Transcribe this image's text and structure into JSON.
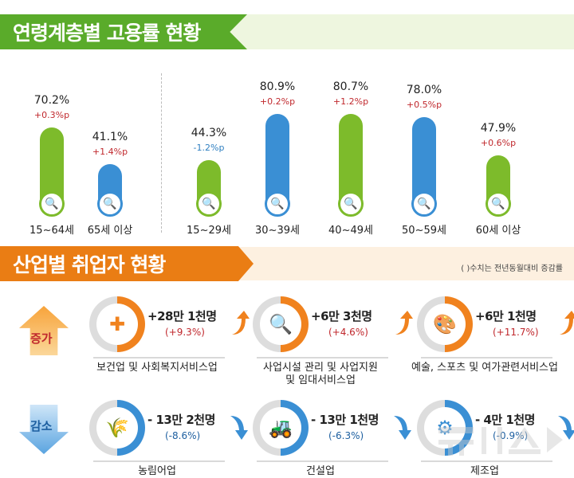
{
  "section1": {
    "title": "연령계층별 고용률 현황",
    "colors": {
      "green": "#7dbb2b",
      "blue": "#3a8fd4",
      "up": "#c0282d",
      "down": "#2e7fc1"
    },
    "bars": [
      {
        "label": "15~64세",
        "value": "70.2%",
        "change": "+0.3%p",
        "v": 70.2,
        "color": "green",
        "dir": "up"
      },
      {
        "label": "65세 이상",
        "value": "41.1%",
        "change": "+1.4%p",
        "v": 41.1,
        "color": "blue",
        "dir": "up"
      },
      {
        "label": "15~29세",
        "value": "44.3%",
        "change": "-1.2%p",
        "v": 44.3,
        "color": "green",
        "dir": "down"
      },
      {
        "label": "30~39세",
        "value": "80.9%",
        "change": "+0.2%p",
        "v": 80.9,
        "color": "blue",
        "dir": "up"
      },
      {
        "label": "40~49세",
        "value": "80.7%",
        "change": "+1.2%p",
        "v": 80.7,
        "color": "green",
        "dir": "up"
      },
      {
        "label": "50~59세",
        "value": "78.0%",
        "change": "+0.5%p",
        "v": 78.0,
        "color": "blue",
        "dir": "up"
      },
      {
        "label": "60세 이상",
        "value": "47.9%",
        "change": "+0.6%p",
        "v": 47.9,
        "color": "green",
        "dir": "up"
      }
    ]
  },
  "section2": {
    "title": "산업별 취업자 현황",
    "note": "( )수치는 전년동월대비 증감률",
    "increase_label": "증가",
    "decrease_label": "감소",
    "increase": [
      {
        "amount": "+28만 1천명",
        "pct": "(+9.3%)",
        "name": "보건업 및 사회복지서비스업",
        "icon": "medical-kit-icon",
        "glyph": "✚"
      },
      {
        "amount": "+6만 3천명",
        "pct": "(+4.6%)",
        "name": "사업시설 관리 및 사업지원\n및 임대서비스업",
        "icon": "tools-search-icon",
        "glyph": "🔍"
      },
      {
        "amount": "+6만 1천명",
        "pct": "(+11.7%)",
        "name": "예술, 스포츠 및 여가관련서비스업",
        "icon": "palette-icon",
        "glyph": "🎨"
      }
    ],
    "decrease": [
      {
        "amount": "- 13만 2천명",
        "pct": "(-8.6%)",
        "name": "농림어업",
        "icon": "wheat-icon",
        "glyph": "🌾"
      },
      {
        "amount": "- 13만 1천명",
        "pct": "(-6.3%)",
        "name": "건설업",
        "icon": "excavator-icon",
        "glyph": "🚜"
      },
      {
        "amount": "- 4만 1천명",
        "pct": "(-0.9%)",
        "name": "제조업",
        "icon": "gears-icon",
        "glyph": "⚙"
      }
    ]
  },
  "watermark": "뉴시스"
}
